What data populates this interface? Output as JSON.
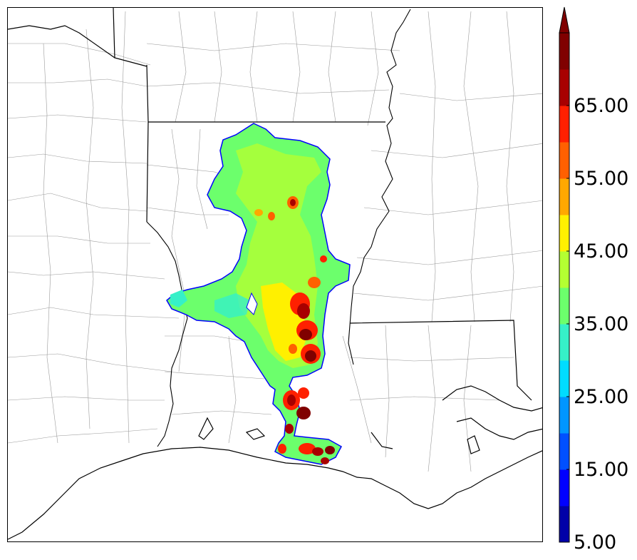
{
  "colorbar": {
    "colors": [
      "#0000a8",
      "#0000ff",
      "#0050ff",
      "#0096ff",
      "#00dcff",
      "#36f0c8",
      "#6cff6c",
      "#b4ff32",
      "#fff000",
      "#ffa800",
      "#ff6000",
      "#ff2000",
      "#a80000",
      "#800000"
    ],
    "ticks": [
      {
        "label": "5.00",
        "value": 5
      },
      {
        "label": "15.00",
        "value": 15
      },
      {
        "label": "25.00",
        "value": 25
      },
      {
        "label": "35.00",
        "value": 35
      },
      {
        "label": "45.00",
        "value": 45
      },
      {
        "label": "55.00",
        "value": 55
      },
      {
        "label": "65.00",
        "value": 65
      }
    ],
    "min": 5,
    "max": 75,
    "extend": "max"
  }
}
